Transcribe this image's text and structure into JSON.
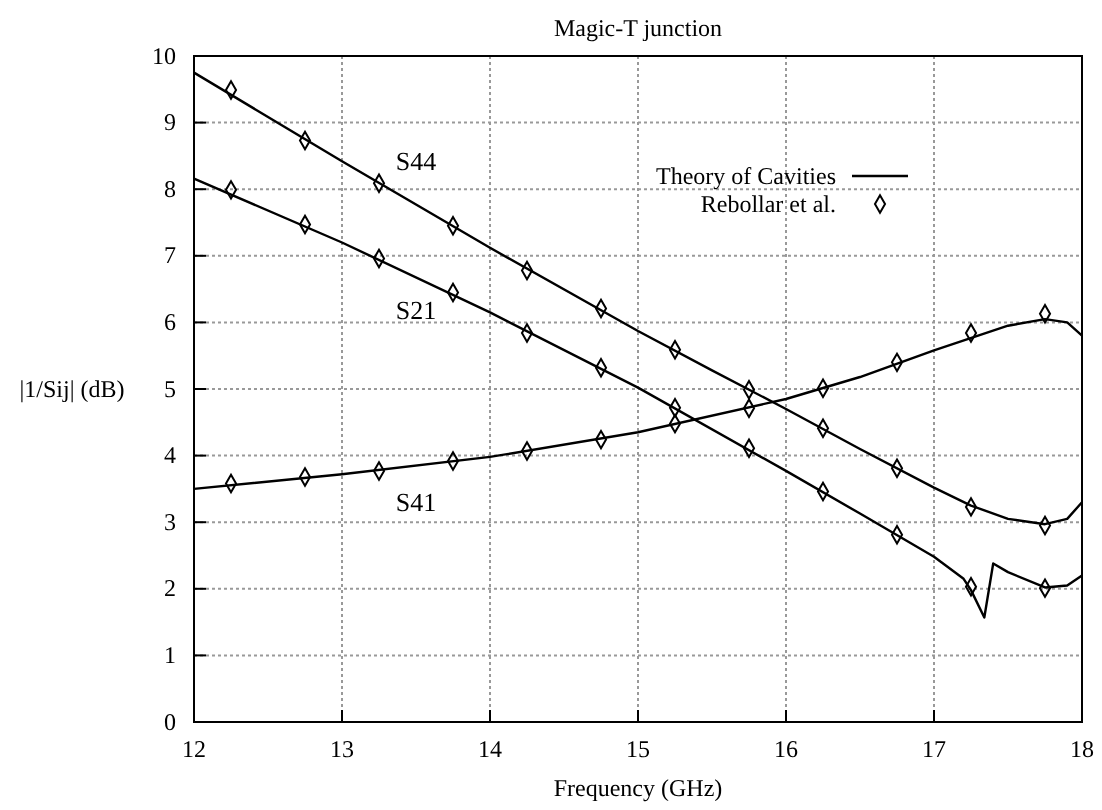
{
  "chart_data": {
    "type": "line",
    "title": "Magic-T junction",
    "xlabel": "Frequency (GHz)",
    "ylabel": "|1/Sij| (dB)",
    "xlim": [
      12,
      18
    ],
    "xticks": [
      12,
      13,
      14,
      15,
      16,
      17,
      18
    ],
    "ylim": [
      0,
      10
    ],
    "yticks": [
      0,
      1,
      2,
      3,
      4,
      5,
      6,
      7,
      8,
      9,
      10
    ],
    "grid": true,
    "legend": "top right",
    "series": [
      {
        "name": "Theory of Cavities",
        "color": "#000000",
        "marker": "none",
        "line_style": "solid",
        "x": [
          12,
          13,
          14,
          15,
          15.5,
          16,
          16.5,
          17,
          17.25,
          17.5,
          17.75,
          17.9,
          18
        ],
        "values": [
          9.75,
          8.42,
          7.12,
          5.87,
          5.28,
          4.7,
          4.1,
          3.52,
          3.25,
          3.05,
          2.97,
          3.05,
          3.3
        ]
      },
      {
        "color": "#000000",
        "marker": "none",
        "line_style": "solid",
        "x": [
          12,
          13,
          14,
          15,
          16,
          16.5,
          17,
          17.2,
          17.25,
          17.34,
          17.4,
          17.5,
          17.75,
          17.9,
          18
        ],
        "values": [
          8.16,
          7.2,
          6.15,
          5.02,
          3.77,
          3.13,
          2.48,
          2.15,
          1.98,
          1.57,
          2.38,
          2.25,
          2.02,
          2.05,
          2.2
        ]
      },
      {
        "color": "#000000",
        "marker": "none",
        "line_style": "solid",
        "x": [
          12,
          13,
          14,
          15,
          16,
          16.5,
          17,
          17.5,
          17.75,
          17.9,
          18
        ],
        "values": [
          3.5,
          3.72,
          3.98,
          4.35,
          4.85,
          5.18,
          5.58,
          5.95,
          6.05,
          6.0,
          5.8
        ]
      },
      {
        "type": "scatter",
        "name": "Rebollar et al.",
        "color": "#000000",
        "marker": "diamond",
        "x": [
          12.25,
          12.75,
          13.25,
          13.75,
          14.25,
          14.75,
          15.25,
          15.75,
          16.25,
          16.75,
          17.25,
          17.75
        ],
        "values": [
          9.49,
          8.73,
          8.09,
          7.45,
          6.78,
          6.21,
          5.59,
          4.99,
          4.41,
          3.81,
          3.23,
          2.95
        ]
      },
      {
        "type": "scatter",
        "color": "#000000",
        "marker": "diamond",
        "x": [
          12.25,
          12.75,
          13.25,
          13.75,
          14.25,
          14.75,
          15.25,
          15.75,
          16.25,
          16.75,
          17.25,
          17.75
        ],
        "values": [
          7.99,
          7.47,
          6.96,
          6.45,
          5.84,
          5.32,
          4.72,
          4.11,
          3.46,
          2.81,
          2.03,
          2.01
        ]
      },
      {
        "type": "scatter",
        "color": "#000000",
        "marker": "diamond",
        "x": [
          12.25,
          12.75,
          13.25,
          13.75,
          14.25,
          14.75,
          15.25,
          15.75,
          16.25,
          16.75,
          17.25,
          17.75
        ],
        "values": [
          3.58,
          3.68,
          3.77,
          3.92,
          4.07,
          4.24,
          4.48,
          4.71,
          5.01,
          5.4,
          5.84,
          6.13
        ]
      }
    ],
    "annotations": [
      "S44",
      "S21",
      "S41"
    ]
  }
}
